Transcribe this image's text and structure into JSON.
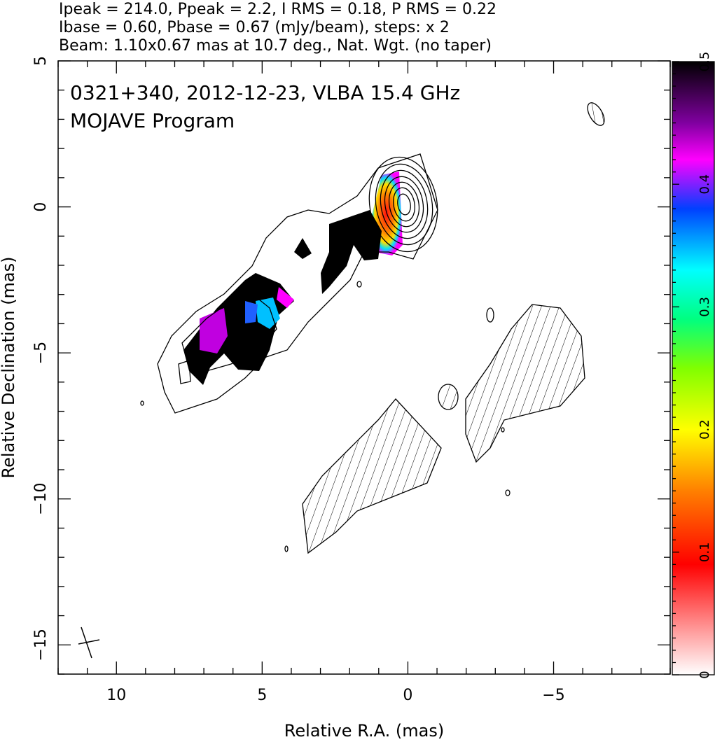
{
  "header": {
    "line1": "Ipeak = 214.0, Ppeak = 2.2, I RMS = 0.18, P RMS = 0.22",
    "line2": "Ibase = 0.60, Pbase = 0.67 (mJy/beam), steps: x 2",
    "line3": "Beam: 1.10x0.67 mas at 10.7 deg., Nat. Wgt. (no taper)"
  },
  "plot_title": {
    "line1": "0321+340, 2012-12-23, VLBA 15.4 GHz",
    "line2": "MOJAVE Program"
  },
  "chart_data": {
    "type": "heatmap",
    "xlabel": "Relative R.A. (mas)",
    "ylabel": "Relative Declination (mas)",
    "xlim": [
      12,
      -9
    ],
    "ylim": [
      -16,
      5
    ],
    "xticks": [
      10,
      5,
      0,
      -5
    ],
    "xtick_labels": [
      "10",
      "5",
      "0",
      "−5"
    ],
    "yticks": [
      5,
      0,
      -5,
      -10,
      -15
    ],
    "ytick_labels": [
      "5",
      "0",
      "−5",
      "−10",
      "−15"
    ],
    "colorbar": {
      "range": [
        0,
        0.5
      ],
      "ticks": [
        0,
        0.1,
        0.2,
        0.3,
        0.4,
        0.5
      ],
      "tick_labels": [
        "0",
        "0.1",
        "0.2",
        "0.3",
        "0.4",
        "0.5"
      ]
    },
    "stokes_I": {
      "peak": 214.0,
      "base": 0.6,
      "rms": 0.18,
      "contour_step_factor": 2,
      "core_position": [
        0,
        0
      ]
    },
    "polarization": {
      "peak": 2.2,
      "base": 0.67,
      "rms": 0.22
    },
    "beam": {
      "major_mas": 1.1,
      "minor_mas": 0.67,
      "pa_deg": 10.7,
      "center": [
        -6.6,
        3.2
      ]
    },
    "grid": false,
    "legend": "none"
  },
  "colors": {
    "frame": "#000000",
    "contour": "#000000",
    "pol_high": "#000000",
    "pol_magenta": "#ff00ff",
    "pol_blue": "#0040ff",
    "pol_cyan": "#00e0ff",
    "pol_yellow": "#ffe000",
    "pol_red": "#ff1010"
  }
}
